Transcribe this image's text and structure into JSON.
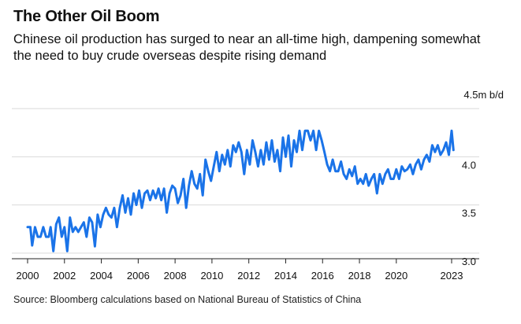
{
  "header": {
    "title": "The Other Oil Boom",
    "subtitle": "Chinese oil production has surged to near an all-time high, dampening somewhat the need to buy crude overseas despite rising demand"
  },
  "footer": {
    "source": "Source: Bloomberg calculations based on National Bureau of Statistics of China"
  },
  "colors": {
    "line": "#1a73e8",
    "grid": "#d9d9d9",
    "axis": "#222222"
  },
  "chart_data": {
    "type": "line",
    "title": "The Other Oil Boom",
    "subtitle": "Chinese oil production has surged to near an all-time high, dampening somewhat the need to buy crude overseas despite rising demand",
    "unit_label": "4.5m b/d",
    "xlabel": "",
    "ylabel": "",
    "xlim": [
      2000,
      2023.3
    ],
    "ylim": [
      2.95,
      4.55
    ],
    "x_ticks": [
      {
        "value": 2000,
        "label": "2000"
      },
      {
        "value": 2002,
        "label": "2002"
      },
      {
        "value": 2004,
        "label": "2004"
      },
      {
        "value": 2006,
        "label": "2006"
      },
      {
        "value": 2008,
        "label": "2008"
      },
      {
        "value": 2010,
        "label": "2010"
      },
      {
        "value": 2012,
        "label": "2012"
      },
      {
        "value": 2014,
        "label": "2014"
      },
      {
        "value": 2016,
        "label": "2016"
      },
      {
        "value": 2018,
        "label": "2018"
      },
      {
        "value": 2020,
        "label": "2020"
      },
      {
        "value": 2023,
        "label": "2023"
      }
    ],
    "y_ticks": [
      {
        "value": 3.0,
        "label": "3.0"
      },
      {
        "value": 3.5,
        "label": "3.5"
      },
      {
        "value": 4.0,
        "label": "4.0"
      },
      {
        "value": 4.5,
        "label": ""
      }
    ],
    "grid": true,
    "legend": "none",
    "series": [
      {
        "x": [
          2000.0,
          2000.15,
          2000.25,
          2000.4,
          2000.55,
          2000.7,
          2000.85,
          2001.0,
          2001.15,
          2001.25,
          2001.4,
          2001.55,
          2001.7,
          2001.85,
          2002.0,
          2002.15,
          2002.3,
          2002.45,
          2002.6,
          2002.75,
          2002.9,
          2003.05,
          2003.2,
          2003.35,
          2003.5,
          2003.65,
          2003.8,
          2003.95,
          2004.1,
          2004.25,
          2004.4,
          2004.55,
          2004.7,
          2004.85,
          2005.0,
          2005.15,
          2005.3,
          2005.45,
          2005.6,
          2005.75,
          2005.9,
          2006.05,
          2006.2,
          2006.35,
          2006.5,
          2006.65,
          2006.8,
          2006.95,
          2007.1,
          2007.25,
          2007.4,
          2007.55,
          2007.7,
          2007.85,
          2008.0,
          2008.15,
          2008.3,
          2008.45,
          2008.6,
          2008.75,
          2008.9,
          2009.05,
          2009.2,
          2009.35,
          2009.5,
          2009.65,
          2009.8,
          2009.95,
          2010.1,
          2010.25,
          2010.4,
          2010.55,
          2010.7,
          2010.85,
          2011.0,
          2011.15,
          2011.3,
          2011.45,
          2011.6,
          2011.75,
          2011.9,
          2012.05,
          2012.2,
          2012.35,
          2012.5,
          2012.65,
          2012.8,
          2012.95,
          2013.1,
          2013.25,
          2013.4,
          2013.55,
          2013.7,
          2013.85,
          2014.0,
          2014.15,
          2014.3,
          2014.45,
          2014.6,
          2014.75,
          2014.9,
          2015.05,
          2015.2,
          2015.35,
          2015.5,
          2015.65,
          2015.8,
          2015.95,
          2016.1,
          2016.25,
          2016.4,
          2016.55,
          2016.7,
          2016.85,
          2017.0,
          2017.15,
          2017.3,
          2017.45,
          2017.6,
          2017.75,
          2017.9,
          2018.05,
          2018.2,
          2018.35,
          2018.5,
          2018.65,
          2018.8,
          2018.95,
          2019.1,
          2019.25,
          2019.4,
          2019.55,
          2019.7,
          2019.85,
          2020.0,
          2020.15,
          2020.3,
          2020.45,
          2020.6,
          2020.75,
          2020.9,
          2021.05,
          2021.2,
          2021.35,
          2021.5,
          2021.65,
          2021.8,
          2021.95,
          2022.1,
          2022.25,
          2022.4,
          2022.55,
          2022.7,
          2022.85,
          2023.0,
          2023.1
        ],
        "values": [
          3.27,
          3.27,
          3.08,
          3.27,
          3.17,
          3.17,
          3.27,
          3.17,
          3.17,
          3.27,
          3.02,
          3.3,
          3.37,
          3.17,
          3.27,
          3.02,
          3.37,
          3.22,
          3.27,
          3.22,
          3.27,
          3.32,
          3.17,
          3.37,
          3.32,
          3.07,
          3.4,
          3.27,
          3.4,
          3.47,
          3.4,
          3.37,
          3.47,
          3.27,
          3.47,
          3.6,
          3.42,
          3.57,
          3.4,
          3.62,
          3.5,
          3.65,
          3.47,
          3.62,
          3.65,
          3.55,
          3.65,
          3.57,
          3.67,
          3.55,
          3.67,
          3.42,
          3.62,
          3.7,
          3.67,
          3.52,
          3.6,
          3.77,
          3.47,
          3.7,
          3.85,
          3.72,
          3.67,
          3.82,
          3.6,
          3.97,
          3.85,
          3.75,
          3.9,
          4.05,
          3.85,
          4.02,
          3.92,
          4.07,
          3.9,
          4.12,
          4.05,
          4.15,
          4.05,
          3.82,
          4.07,
          3.92,
          4.17,
          4.05,
          3.9,
          4.07,
          3.92,
          4.15,
          3.97,
          4.17,
          3.95,
          4.07,
          3.85,
          4.2,
          4.0,
          4.22,
          3.9,
          4.17,
          4.05,
          4.27,
          4.07,
          4.27,
          4.27,
          4.17,
          4.27,
          4.07,
          4.27,
          4.17,
          4.05,
          3.92,
          3.85,
          3.97,
          3.85,
          3.85,
          3.95,
          3.82,
          3.77,
          3.87,
          3.8,
          3.9,
          3.72,
          3.77,
          3.72,
          3.82,
          3.7,
          3.77,
          3.82,
          3.62,
          3.82,
          3.72,
          3.82,
          3.87,
          3.77,
          3.77,
          3.87,
          3.77,
          3.9,
          3.85,
          3.87,
          3.92,
          3.82,
          3.92,
          3.97,
          3.87,
          3.97,
          4.02,
          3.95,
          4.12,
          4.05,
          4.12,
          4.02,
          4.07,
          4.15,
          4.02,
          4.27,
          4.07
        ]
      }
    ]
  }
}
